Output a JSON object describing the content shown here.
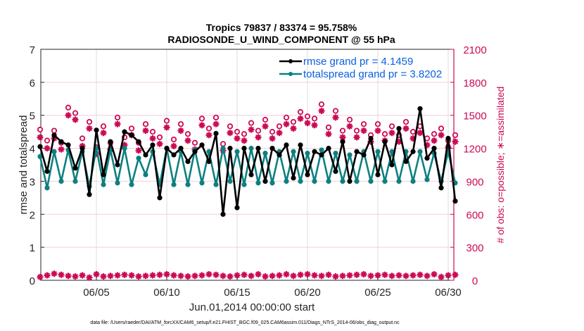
{
  "chart_data": {
    "type": "line",
    "title": "Tropics 79837 / 83374 = 95.758%",
    "subtitle": "RADIOSONDE_U_WIND_COMPONENT @ 55 hPa",
    "xlabel": "Jun.01,2014 00:00:00 start",
    "ylabel": "rmse and totalspread",
    "y2label": "# of obs: o=possible; ∗=assimilated",
    "footer": "data file: /Users/raeder/DAI/ATM_forcXX/CAM6_setup/f.e21.FHIST_BGC.f09_025.CAM6assim.011/Diags_NTrS_2014-06/obs_diag_output.nc",
    "xlim_days": [
      0,
      29.9
    ],
    "ylim": [
      0,
      7
    ],
    "y2lim": [
      0,
      2100
    ],
    "x_ticks": [
      {
        "day": 4,
        "label": "06/05"
      },
      {
        "day": 9,
        "label": "06/10"
      },
      {
        "day": 14,
        "label": "06/15"
      },
      {
        "day": 19,
        "label": "06/20"
      },
      {
        "day": 24,
        "label": "06/25"
      },
      {
        "day": 29,
        "label": "06/30"
      }
    ],
    "y_ticks": [
      "0",
      "1",
      "2",
      "3",
      "4",
      "5",
      "6",
      "7"
    ],
    "y2_ticks": [
      "0",
      "300",
      "600",
      "900",
      "1200",
      "1500",
      "1800",
      "2100"
    ],
    "grid": true,
    "legend_position": "top-right",
    "x_step_days": 0.5,
    "series": [
      {
        "name": "rmse grand pr = 4.1459",
        "color": "#000000",
        "axis": "left",
        "values": [
          4.05,
          3.3,
          4.4,
          4.2,
          4.1,
          3.4,
          4.0,
          2.6,
          4.55,
          3.2,
          4.2,
          3.5,
          4.5,
          4.4,
          4.2,
          3.8,
          4.1,
          2.5,
          4.0,
          3.8,
          4.0,
          3.6,
          3.9,
          4.1,
          3.6,
          4.45,
          2.0,
          4.0,
          2.2,
          4.0,
          3.2,
          4.0,
          3.0,
          4.0,
          3.8,
          4.1,
          3.1,
          4.1,
          3.2,
          3.9,
          3.8,
          4.0,
          3.3,
          4.2,
          3.0,
          3.9,
          3.8,
          4.3,
          3.2,
          4.2,
          3.5,
          4.6,
          3.6,
          3.9,
          5.2,
          3.7,
          4.0,
          2.8,
          4.3,
          2.4
        ]
      },
      {
        "name": "totalspread grand pr = 3.8202",
        "color": "#0d8080",
        "axis": "left",
        "values": [
          3.75,
          2.8,
          3.9,
          3.0,
          3.95,
          3.0,
          3.9,
          2.85,
          4.0,
          2.9,
          3.95,
          2.95,
          4.0,
          2.9,
          3.7,
          3.2,
          3.9,
          2.9,
          4.0,
          2.9,
          3.9,
          2.9,
          3.95,
          2.95,
          3.9,
          2.9,
          4.0,
          3.0,
          3.9,
          2.9,
          4.0,
          2.95,
          3.85,
          2.95,
          3.9,
          3.0,
          3.9,
          3.0,
          3.85,
          3.0,
          3.95,
          3.0,
          3.85,
          3.0,
          3.8,
          3.0,
          3.9,
          3.0,
          3.9,
          3.0,
          3.9,
          3.0,
          3.9,
          3.0,
          3.9,
          3.05,
          3.85,
          3.0,
          3.9,
          2.95
        ]
      },
      {
        "name": "possible",
        "color": "#cc0a55",
        "axis": "right",
        "marker": "o",
        "values": [
          1370,
          1270,
          1360,
          1250,
          1570,
          1520,
          1290,
          1440,
          1210,
          1400,
          1250,
          1480,
          1300,
          1380,
          1250,
          1420,
          1350,
          1300,
          1450,
          1280,
          1420,
          1330,
          1250,
          1470,
          1380,
          1480,
          1240,
          1400,
          1350,
          1330,
          1430,
          1360,
          1460,
          1350,
          1400,
          1480,
          1440,
          1530,
          1490,
          1470,
          1600,
          1390,
          1540,
          1360,
          1460,
          1360,
          1420,
          1320,
          1420,
          1330,
          1400,
          1320,
          1440,
          1350,
          1400,
          1290,
          1330,
          1380,
          1270,
          1320
        ]
      },
      {
        "name": "assimilated",
        "color": "#cc0a55",
        "axis": "right",
        "marker": "*",
        "values": [
          1300,
          1200,
          1290,
          1190,
          1500,
          1460,
          1220,
          1380,
          1150,
          1340,
          1190,
          1420,
          1230,
          1320,
          1180,
          1360,
          1290,
          1240,
          1390,
          1220,
          1360,
          1270,
          1190,
          1410,
          1320,
          1420,
          1180,
          1340,
          1290,
          1270,
          1370,
          1300,
          1400,
          1290,
          1340,
          1420,
          1380,
          1470,
          1430,
          1410,
          1540,
          1330,
          1480,
          1300,
          1400,
          1300,
          1360,
          1260,
          1360,
          1270,
          1340,
          1260,
          1380,
          1290,
          1340,
          1230,
          1270,
          1320,
          1210,
          1260
        ]
      },
      {
        "name": "possible_low",
        "color": "#cc0a55",
        "axis": "right",
        "marker": "*",
        "values": [
          30,
          45,
          60,
          50,
          40,
          35,
          45,
          25,
          55,
          35,
          40,
          45,
          50,
          45,
          35,
          40,
          45,
          50,
          55,
          45,
          40,
          35,
          40,
          45,
          55,
          50,
          40,
          35,
          45,
          50,
          40,
          55,
          35,
          40,
          45,
          55,
          40,
          50,
          55,
          45,
          40,
          50,
          35,
          40,
          45,
          50,
          55,
          40,
          45,
          50,
          40,
          45,
          40,
          45,
          50,
          40,
          55,
          30,
          45,
          50
        ]
      }
    ]
  }
}
